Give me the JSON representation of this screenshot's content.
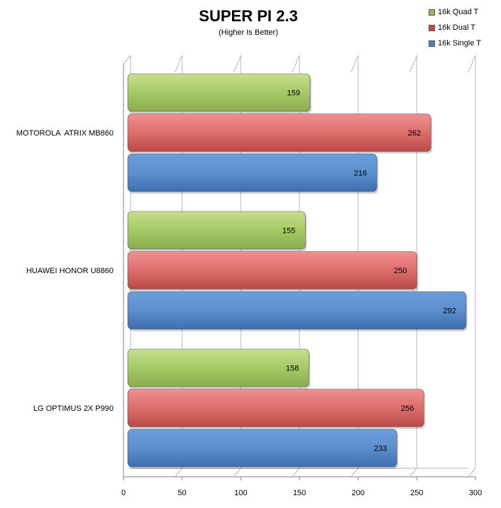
{
  "chart_data": {
    "type": "bar",
    "orientation": "horizontal",
    "title": "SUPER PI 2.3",
    "subtitle": "(Higher Is Better)",
    "categories": [
      "MOTOROLA  ATRIX MB860",
      "HUAWEI HONOR U8860",
      "LG OPTIMUS 2X P990"
    ],
    "series": [
      {
        "name": "16k Quad T",
        "color": "#9bbb59",
        "values": [
          159,
          155,
          158
        ]
      },
      {
        "name": "16k Dual T",
        "color": "#c0504d",
        "values": [
          262,
          250,
          256
        ]
      },
      {
        "name": "16k Single T",
        "color": "#4f81bd",
        "values": [
          216,
          292,
          233
        ]
      }
    ],
    "xlim": [
      0,
      300
    ],
    "xticks": [
      "0",
      "50",
      "100",
      "150",
      "200",
      "250",
      "300"
    ],
    "grid": true,
    "legend": "top-right"
  }
}
